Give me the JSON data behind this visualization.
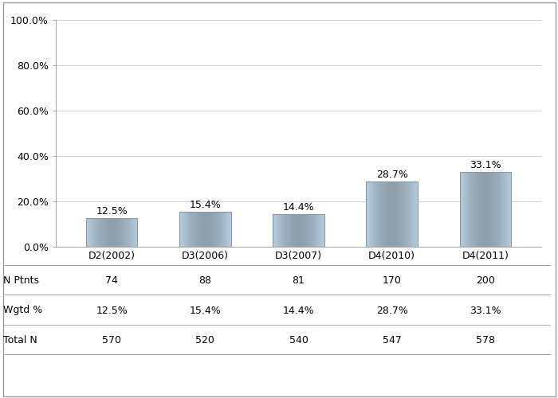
{
  "categories": [
    "D2(2002)",
    "D3(2006)",
    "D3(2007)",
    "D4(2010)",
    "D4(2011)"
  ],
  "values": [
    12.5,
    15.4,
    14.4,
    28.7,
    33.1
  ],
  "ylim": [
    0,
    100
  ],
  "yticks": [
    0,
    20,
    40,
    60,
    80,
    100
  ],
  "ytick_labels": [
    "0.0%",
    "20.0%",
    "40.0%",
    "60.0%",
    "80.0%",
    "100.0%"
  ],
  "background_color": "#ffffff",
  "grid_color": "#d0d0d0",
  "table_rows": [
    "N Ptnts",
    "Wgtd %",
    "Total N"
  ],
  "table_data": [
    [
      "74",
      "88",
      "81",
      "170",
      "200"
    ],
    [
      "12.5%",
      "15.4%",
      "14.4%",
      "28.7%",
      "33.1%"
    ],
    [
      "570",
      "520",
      "540",
      "547",
      "578"
    ]
  ],
  "tick_fontsize": 9,
  "table_fontsize": 9,
  "bar_label_fontsize": 9,
  "border_color": "#aaaaaa",
  "bar_edge_color": "#8899aa",
  "bar_base_r": 0.72,
  "bar_base_g": 0.8,
  "bar_base_b": 0.87,
  "bar_gradient_depth": 0.22
}
